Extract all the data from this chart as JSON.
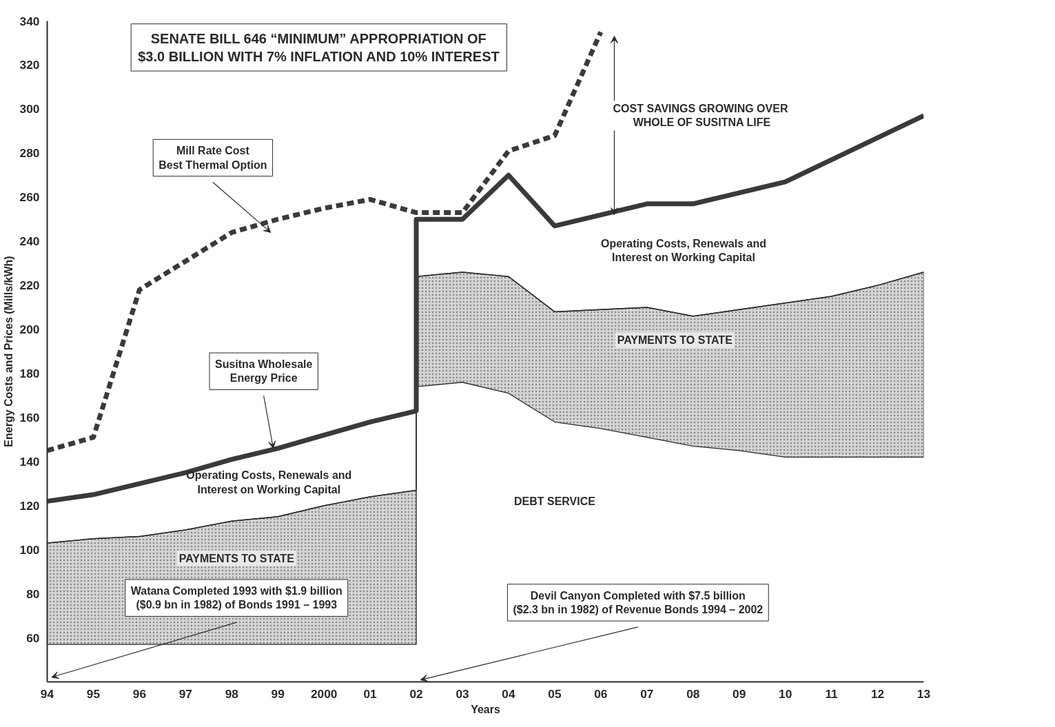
{
  "chart_data": {
    "type": "line",
    "title": "SENATE BILL 646 “MINIMUM” APPROPRIATION OF\n$3.0 BILLION WITH 7% INFLATION AND 10% INTEREST",
    "xlabel": "Years",
    "ylabel": "Energy Costs and Prices (Mills/kWh)",
    "xlim": [
      1994,
      2013
    ],
    "ylim": [
      40,
      340
    ],
    "xticks": [
      {
        "value": 1994,
        "label": "94"
      },
      {
        "value": 1995,
        "label": "95"
      },
      {
        "value": 1996,
        "label": "96"
      },
      {
        "value": 1997,
        "label": "97"
      },
      {
        "value": 1998,
        "label": "98"
      },
      {
        "value": 1999,
        "label": "99"
      },
      2000,
      {
        "value": 2001,
        "label": "01"
      },
      {
        "value": 2002,
        "label": "02"
      },
      {
        "value": 2003,
        "label": "03"
      },
      {
        "value": 2004,
        "label": "04"
      },
      {
        "value": 2005,
        "label": "05"
      },
      {
        "value": 2006,
        "label": "06"
      },
      {
        "value": 2007,
        "label": "07"
      },
      {
        "value": 2008,
        "label": "08"
      },
      {
        "value": 2009,
        "label": "09"
      },
      {
        "value": 2010,
        "label": "10"
      },
      {
        "value": 2011,
        "label": "11"
      },
      {
        "value": 2012,
        "label": "12"
      },
      {
        "value": 2013,
        "label": "13"
      }
    ],
    "yticks": [
      60,
      80,
      100,
      120,
      140,
      160,
      180,
      200,
      220,
      240,
      260,
      280,
      300,
      320,
      340
    ],
    "grid": false,
    "marker": "none",
    "series": [
      {
        "color": "#2a2a2a",
        "line_style": "solid",
        "x": [
          1994,
          1995,
          1996,
          1997,
          1998,
          1999,
          2000,
          2001,
          2002,
          2002,
          2003,
          2004,
          2005,
          2006,
          2007,
          2008,
          2009,
          2010,
          2011,
          2012,
          2013
        ],
        "values": [
          103,
          105,
          106,
          109,
          113,
          115,
          120,
          124,
          127,
          224,
          226,
          224,
          208,
          209,
          210,
          206,
          209,
          212,
          215,
          220,
          226
        ],
        "upper": [
          103,
          105,
          106,
          109,
          113,
          115,
          120,
          124,
          127,
          224,
          226,
          224,
          208,
          209,
          210,
          206,
          209,
          212,
          215,
          220,
          226
        ],
        "lower": [
          57,
          57,
          57,
          57,
          57,
          57,
          57,
          57,
          57,
          174,
          176,
          171,
          158,
          155,
          151,
          147,
          145,
          142,
          142,
          142,
          142
        ]
      },
      {
        "color": "#3a3a3a",
        "line_style": "dashed",
        "x": [
          1994,
          1995,
          1996,
          1997,
          1998,
          1999,
          2000,
          2001,
          2002,
          2003,
          2004,
          2005,
          2006
        ],
        "values": [
          145,
          151,
          218,
          231,
          244,
          250,
          255,
          259,
          253,
          253,
          281,
          288,
          335
        ]
      },
      {
        "color": "#3a3a3a",
        "line_style": "solid",
        "x": [
          1994,
          1995,
          1996,
          1997,
          1998,
          1999,
          2000,
          2001,
          2002,
          2002,
          2003,
          2004,
          2005,
          2006,
          2007,
          2008,
          2009,
          2010,
          2011,
          2012,
          2013
        ],
        "values": [
          122,
          125,
          130,
          135,
          141,
          146,
          152,
          158,
          163,
          250,
          250,
          270,
          247,
          252,
          257,
          257,
          262,
          267,
          277,
          287,
          297
        ]
      }
    ],
    "annotations": [
      "Mill Rate Cost\nBest Thermal Option",
      {
        "text": "Susitna Wholesale\nEnergy Price",
        "x": 1998.9,
        "y": 146
      },
      "COST SAVINGS  GROWING OVER\nWHOLE OF SUSITNA LIFE",
      "Operating Costs, Renewals and\nInterest on Working Capital",
      "Operating Costs, Renewals and\nInterest on Working Capital",
      "PAYMENTS TO STATE",
      "PAYMENTS TO STATE",
      "DEBT SERVICE",
      "Watana Completed 1993 with $1.9 billion\n($0.9 bn in 1982) of Bonds 1991 – 1993",
      "Devil Canyon Completed with $7.5 billion\n($2.3 bn in 1982) of Revenue Bonds 1994 – 2002"
    ]
  }
}
